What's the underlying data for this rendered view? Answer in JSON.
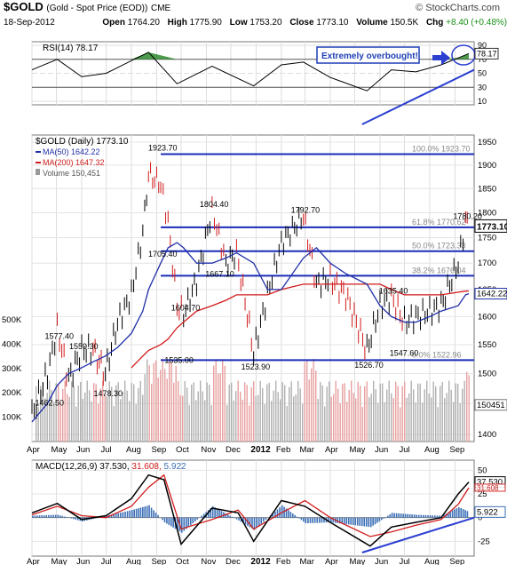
{
  "header": {
    "symbol": "$GOLD",
    "name": "(Gold - Spot Price (EOD))",
    "exchange": "CME",
    "brand": "© StockCharts.com",
    "date": "18-Sep-2012",
    "open_label": "Open",
    "open": "1764.20",
    "high_label": "High",
    "high": "1775.90",
    "low_label": "Low",
    "low": "1753.20",
    "close_label": "Close",
    "close": "1773.10",
    "volume_label": "Volume",
    "volume": "150.5K",
    "chg_label": "Chg",
    "chg": "+8.40 (+0.48%)",
    "chg_arrow": "▲"
  },
  "rsi_panel": {
    "legend": "RSI(14) 78.17",
    "annotation": "Extremely overbought!",
    "value_tag": "78.17",
    "ticks": [
      "90",
      "70",
      "50",
      "30",
      "10"
    ],
    "colors": {
      "line": "#000000",
      "overbought_fill": "#2e8b2e",
      "trend": "#2b3fd1",
      "note_border": "#1f3fb8",
      "note_text": "#1f3fb8"
    }
  },
  "price_panel": {
    "legend_title": "$GOLD (Daily) 1773.10",
    "legend_ma50": "MA(50) 1642.22",
    "legend_ma200": "MA(200) 1647.32",
    "legend_volume": "Volume 150,451",
    "price_tag": "1773.10",
    "ma50_tag": "1642.22",
    "volume_tag": "150451",
    "fib_labels": {
      "100": "100.0% 1923.70",
      "61.8": "61.8% 1770.62",
      "50": "50.0% 1723.33",
      "38.2": "38.2% 1676.04",
      "0": "0.0% 1522.96"
    },
    "price_ticks": [
      "1950",
      "1900",
      "1850",
      "1800",
      "1750",
      "1700",
      "1650",
      "1600",
      "1550",
      "1500",
      "1450",
      "1400"
    ],
    "volume_ticks": [
      "500K",
      "400K",
      "300K",
      "200K",
      "100K"
    ],
    "colors": {
      "up": "#000000",
      "down": "#d11b1b",
      "ma50": "#1f2fa8",
      "ma200": "#d11b1b",
      "fib": "#1a2db8",
      "vol_up": "#b0b0b0",
      "vol_down": "#e8a0a0"
    }
  },
  "macd_panel": {
    "legend": "MACD(12,26,9) 37.530, 31.608, 5.922",
    "legend_parts": [
      "MACD(12,26,9) 37.530, ",
      "31.608, ",
      "5.922"
    ],
    "tag_macd": "37.530",
    "tag_signal": "31.608",
    "tag_hist": "5.922",
    "ticks": [
      "50",
      "25",
      "0",
      "-25"
    ],
    "colors": {
      "macd": "#000000",
      "signal": "#d11b1b",
      "hist": "#3b6fb6",
      "trend": "#2b3fd1"
    }
  },
  "x_axis": {
    "labels": [
      "Apr",
      "May",
      "Jun",
      "Jul",
      "Aug",
      "Sep",
      "Oct",
      "Nov",
      "Dec",
      "2012",
      "Feb",
      "Mar",
      "Apr",
      "May",
      "Jun",
      "Jul",
      "Aug",
      "Sep"
    ]
  },
  "chart_data": {
    "type": "line",
    "title": "$GOLD (Gold - Spot Price (EOD)) CME",
    "x_range": [
      "2011-04",
      "2012-09-18"
    ],
    "price": {
      "ylim": [
        1400,
        1950
      ],
      "scale": "log",
      "x": [
        "2011-04-01",
        "2011-04-20",
        "2011-05-02",
        "2011-05-16",
        "2011-06-01",
        "2011-06-15",
        "2011-06-30",
        "2011-07-15",
        "2011-08-01",
        "2011-08-15",
        "2011-08-22",
        "2011-09-06",
        "2011-09-15",
        "2011-09-26",
        "2011-10-04",
        "2011-10-20",
        "2011-11-08",
        "2011-11-25",
        "2011-12-08",
        "2011-12-29",
        "2012-01-15",
        "2012-02-01",
        "2012-02-28",
        "2012-03-15",
        "2012-04-01",
        "2012-04-20",
        "2012-05-16",
        "2012-06-01",
        "2012-06-15",
        "2012-07-01",
        "2012-07-15",
        "2012-08-01",
        "2012-08-15",
        "2012-09-05",
        "2012-09-14",
        "2012-09-18"
      ],
      "close": [
        1430,
        1500,
        1577.4,
        1490,
        1540,
        1540,
        1500,
        1590,
        1640,
        1760,
        1880,
        1860,
        1780,
        1620,
        1604.7,
        1667.1,
        1804.4,
        1700,
        1720,
        1535,
        1640,
        1740,
        1792.7,
        1660,
        1670,
        1640,
        1540,
        1620,
        1635.4,
        1590,
        1600,
        1610,
        1620,
        1700,
        1780.2,
        1773.1
      ],
      "ma50": {
        "legend": "MA(50) 1642.22",
        "values": [
          1420,
          1450,
          1480,
          1500,
          1510,
          1520,
          1530,
          1545,
          1570,
          1610,
          1650,
          1700,
          1730,
          1740,
          1730,
          1700,
          1700,
          1710,
          1720,
          1700,
          1650,
          1650,
          1710,
          1730,
          1700,
          1680,
          1660,
          1620,
          1600,
          1590,
          1590,
          1600,
          1610,
          1620,
          1640,
          1642.22
        ]
      },
      "ma200": {
        "legend": "MA(200) 1647.32",
        "values": [
          null,
          null,
          null,
          null,
          null,
          null,
          null,
          null,
          1510,
          1530,
          1540,
          1550,
          1560,
          1580,
          1590,
          1610,
          1620,
          1630,
          1640,
          1640,
          1640,
          1650,
          1660,
          1660,
          1660,
          1660,
          1660,
          1660,
          1650,
          1640,
          1640,
          1640,
          1640,
          1645,
          1647,
          1647.32
        ]
      },
      "annotations": [
        {
          "label": "1462.50",
          "x": "2011-04-20",
          "y": 1462.5
        },
        {
          "label": "1577.40",
          "x": "2011-05-02",
          "y": 1577.4
        },
        {
          "label": "1559.30",
          "x": "2011-06-01",
          "y": 1559.3
        },
        {
          "label": "1478.30",
          "x": "2011-07-01",
          "y": 1478.3
        },
        {
          "label": "1923.70",
          "x": "2011-09-06",
          "y": 1923.7
        },
        {
          "label": "1705.40",
          "x": "2011-09-06",
          "y": 1705.4
        },
        {
          "label": "1535.00",
          "x": "2011-09-26",
          "y": 1535.0
        },
        {
          "label": "1604.70",
          "x": "2011-10-04",
          "y": 1604.7
        },
        {
          "label": "1804.40",
          "x": "2011-11-08",
          "y": 1804.4
        },
        {
          "label": "1667.10",
          "x": "2011-11-15",
          "y": 1667.1
        },
        {
          "label": "1523.90",
          "x": "2011-12-29",
          "y": 1523.9
        },
        {
          "label": "1792.70",
          "x": "2012-02-28",
          "y": 1792.7
        },
        {
          "label": "1635.40",
          "x": "2012-06-15",
          "y": 1635.4
        },
        {
          "label": "1526.70",
          "x": "2012-05-16",
          "y": 1526.7
        },
        {
          "label": "1547.60",
          "x": "2012-06-28",
          "y": 1547.6
        },
        {
          "label": "1780.20",
          "x": "2012-09-14",
          "y": 1780.2
        }
      ],
      "fibonacci": [
        {
          "level": "100.0%",
          "value": 1923.7
        },
        {
          "level": "61.8%",
          "value": 1770.62
        },
        {
          "level": "50.0%",
          "value": 1723.33
        },
        {
          "level": "38.2%",
          "value": 1676.04
        },
        {
          "level": "0.0%",
          "value": 1522.96
        }
      ]
    },
    "volume": {
      "ylim": [
        0,
        500000
      ],
      "last": 150451
    },
    "rsi": {
      "ylim": [
        10,
        90
      ],
      "last": 78.17,
      "x": [
        "2011-04-01",
        "2011-05-02",
        "2011-06-01",
        "2011-07-01",
        "2011-08-01",
        "2011-08-22",
        "2011-09-26",
        "2011-11-08",
        "2011-12-29",
        "2012-02-01",
        "2012-02-28",
        "2012-04-01",
        "2012-05-16",
        "2012-06-15",
        "2012-07-15",
        "2012-08-15",
        "2012-09-05",
        "2012-09-18"
      ],
      "values": [
        55,
        70,
        45,
        50,
        68,
        80,
        35,
        60,
        32,
        62,
        66,
        44,
        25,
        55,
        52,
        62,
        72,
        78.17
      ]
    },
    "macd": {
      "ylim": [
        -35,
        55
      ],
      "x": [
        "2011-04-01",
        "2011-05-02",
        "2011-06-01",
        "2011-07-01",
        "2011-08-01",
        "2011-08-22",
        "2011-09-10",
        "2011-10-01",
        "2011-11-08",
        "2011-12-10",
        "2011-12-29",
        "2012-02-01",
        "2012-03-01",
        "2012-04-01",
        "2012-05-20",
        "2012-06-15",
        "2012-07-15",
        "2012-08-15",
        "2012-09-05",
        "2012-09-18"
      ],
      "macd": [
        5,
        15,
        -2,
        2,
        20,
        45,
        40,
        -28,
        10,
        5,
        -25,
        18,
        12,
        -5,
        -30,
        -10,
        -5,
        0,
        25,
        37.53
      ],
      "signal": [
        3,
        12,
        2,
        0,
        12,
        32,
        45,
        -12,
        -2,
        8,
        -12,
        5,
        18,
        0,
        -20,
        -15,
        -8,
        -2,
        14,
        31.608
      ],
      "histogram": [
        2,
        3,
        -4,
        2,
        8,
        13,
        -5,
        -16,
        12,
        -3,
        -13,
        13,
        -6,
        -5,
        -10,
        5,
        3,
        2,
        11,
        5.922
      ]
    }
  }
}
